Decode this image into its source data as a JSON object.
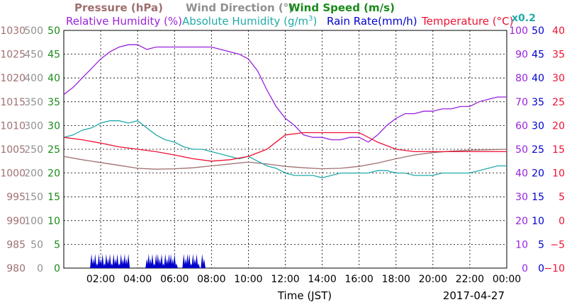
{
  "chart_data": {
    "type": "line",
    "date_label": "2017-04-27",
    "xlabel": "Time (JST)",
    "x_range": [
      "00:00",
      "24:00"
    ],
    "x_ticks": [
      "02:00",
      "04:00",
      "06:00",
      "08:00",
      "10:00",
      "12:00",
      "14:00",
      "16:00",
      "18:00",
      "20:00",
      "22:00",
      "00:00"
    ],
    "grid": true,
    "legend": [
      {
        "label": "Pressure (hPa)",
        "color": "#a07070"
      },
      {
        "label": "Wind Direction (°)",
        "color": "#909090"
      },
      {
        "label": "Wind Speed (m/s)",
        "color": "#1a8a1a"
      },
      {
        "label": "Relative Humidity (%)",
        "color": "#9922dd"
      },
      {
        "label": "Absolute Humidity (g/m",
        "sup": "3",
        "suffix": ")",
        "note": "x0.2",
        "color": "#22aaaa"
      },
      {
        "label": "Rain Rate(mm/h)",
        "color": "#0000cc"
      },
      {
        "label": "Temperature (°C)",
        "color": "#ee1133"
      }
    ],
    "axes": {
      "pressure": {
        "color": "#a07070",
        "range": [
          980,
          1030
        ],
        "ticks": [
          "980",
          "985",
          "990",
          "995",
          "1000",
          "1005",
          "1010",
          "1015",
          "1020",
          "1025",
          "1030"
        ]
      },
      "wind_direction": {
        "color": "#909090",
        "range": [
          0,
          500
        ],
        "ticks": [
          "0",
          "50",
          "100",
          "150",
          "200",
          "250",
          "300",
          "350",
          "400",
          "450",
          "500"
        ]
      },
      "wind_speed": {
        "color": "#1a8a1a",
        "range": [
          0,
          50
        ],
        "ticks": [
          "0",
          "5",
          "10",
          "15",
          "20",
          "25",
          "30",
          "35",
          "40",
          "45",
          "50"
        ]
      },
      "relative_humidity": {
        "color": "#9922dd",
        "range": [
          0,
          100
        ],
        "ticks": [
          "0",
          "10",
          "20",
          "30",
          "40",
          "50",
          "60",
          "70",
          "80",
          "90",
          "100"
        ]
      },
      "rain_rate": {
        "color": "#0000cc",
        "range": [
          0,
          50
        ],
        "ticks": [
          "0",
          "5",
          "10",
          "15",
          "20",
          "25",
          "30",
          "35",
          "40",
          "45",
          "50"
        ]
      },
      "temperature": {
        "color": "#ee1133",
        "range": [
          -10,
          40
        ],
        "ticks": [
          "−10",
          "−5",
          "0",
          "5",
          "10",
          "15",
          "20",
          "25",
          "30",
          "35",
          "40"
        ]
      }
    },
    "series": [
      {
        "key": "pressure",
        "color": "#a07070",
        "axis": "pressure",
        "x": [
          0,
          1,
          2,
          3,
          4,
          5,
          6,
          7,
          8,
          9,
          10,
          11,
          12,
          13,
          14,
          15,
          16,
          17,
          18,
          19,
          20,
          21,
          22,
          23,
          24
        ],
        "y": [
          1003.5,
          1002.8,
          1002.2,
          1001.6,
          1001.0,
          1000.8,
          1000.9,
          1001.1,
          1001.5,
          1001.9,
          1002.3,
          1001.9,
          1001.4,
          1001.1,
          1000.9,
          1001.0,
          1001.4,
          1002.1,
          1003.0,
          1003.8,
          1004.3,
          1004.6,
          1004.8,
          1004.9,
          1005.0
        ]
      },
      {
        "key": "relative_humidity",
        "color": "#9922dd",
        "axis": "relative_humidity",
        "x": [
          0,
          0.5,
          1,
          1.5,
          2,
          2.5,
          3,
          3.5,
          4,
          4.5,
          5,
          5.5,
          6,
          6.5,
          7,
          7.5,
          8,
          8.5,
          9,
          9.5,
          10,
          10.5,
          11,
          11.5,
          12,
          12.5,
          13,
          13.5,
          14,
          14.5,
          15,
          15.5,
          16,
          16.5,
          17,
          17.5,
          18,
          18.5,
          19,
          19.5,
          20,
          20.5,
          21,
          21.5,
          22,
          22.5,
          23,
          23.5,
          24
        ],
        "y": [
          73,
          76,
          80,
          84,
          88,
          91,
          93,
          94,
          94,
          92,
          93,
          93,
          93,
          93,
          93,
          93,
          93,
          92,
          91,
          90,
          88,
          83,
          75,
          68,
          63,
          60,
          56,
          55,
          55,
          54,
          54,
          55,
          55,
          53,
          56,
          60,
          63,
          65,
          65,
          66,
          66,
          67,
          67,
          68,
          68,
          70,
          71,
          72,
          72
        ]
      },
      {
        "key": "absolute_humidity",
        "color": "#22aaaa",
        "axis": "relative_humidity",
        "x": [
          0,
          0.5,
          1,
          1.5,
          2,
          2.5,
          3,
          3.5,
          4,
          4.5,
          5,
          5.5,
          6,
          6.5,
          7,
          7.5,
          8,
          8.5,
          9,
          9.5,
          10,
          10.5,
          11,
          11.5,
          12,
          12.5,
          13,
          13.5,
          14,
          14.5,
          15,
          15.5,
          16,
          16.5,
          17,
          17.5,
          18,
          18.5,
          19,
          19.5,
          20,
          20.5,
          21,
          21.5,
          22,
          22.5,
          23,
          23.5,
          24
        ],
        "y": [
          55,
          56,
          58,
          59,
          61,
          62,
          62,
          61,
          62,
          59,
          56,
          54,
          53,
          51,
          50,
          50,
          49,
          48,
          47,
          46,
          47,
          45,
          43,
          42,
          40,
          39,
          39,
          39,
          38,
          39,
          40,
          40,
          40,
          40,
          41,
          41,
          40,
          40,
          39,
          39,
          39,
          40,
          40,
          40,
          40,
          41,
          42,
          43,
          43
        ]
      },
      {
        "key": "temperature",
        "color": "#ee1133",
        "axis": "temperature",
        "x": [
          0,
          1,
          2,
          3,
          4,
          5,
          6,
          7,
          8,
          9,
          10,
          11,
          12,
          13,
          14,
          15,
          16,
          17,
          18,
          19,
          20,
          21,
          22,
          23,
          24
        ],
        "y": [
          17.5,
          17.0,
          16.3,
          15.5,
          15.0,
          14.5,
          13.8,
          13.0,
          12.5,
          12.8,
          13.5,
          15.0,
          18.0,
          18.5,
          18.5,
          18.5,
          18.5,
          16.5,
          15.0,
          14.5,
          14.5,
          14.5,
          14.5,
          14.5,
          14.5
        ]
      }
    ],
    "rain": {
      "color": "#0000cc",
      "axis": "rain_rate",
      "x": [
        1.5,
        1.6,
        1.7,
        1.8,
        1.9,
        2.0,
        2.1,
        2.2,
        2.3,
        2.4,
        2.5,
        2.6,
        2.7,
        2.8,
        2.9,
        3.0,
        3.1,
        3.2,
        3.3,
        3.4,
        3.5,
        4.5,
        4.6,
        4.7,
        4.8,
        4.9,
        5.0,
        5.1,
        5.2,
        5.3,
        5.4,
        5.5,
        5.6,
        5.7,
        5.8,
        5.9,
        6.0,
        6.1,
        6.5,
        6.6,
        6.7,
        6.8,
        6.9,
        7.0,
        7.1,
        7.2,
        7.3,
        7.5,
        7.6
      ],
      "y": [
        3,
        2,
        3,
        1,
        3,
        2,
        3,
        1,
        3,
        2,
        3,
        1,
        3,
        2,
        3,
        1,
        3,
        2,
        3,
        2,
        3,
        2,
        3,
        2,
        3,
        1,
        3,
        3,
        2,
        3,
        1,
        3,
        2,
        3,
        3,
        2,
        3,
        1,
        3,
        2,
        3,
        3,
        1,
        3,
        2,
        3,
        1,
        3,
        2
      ]
    }
  }
}
